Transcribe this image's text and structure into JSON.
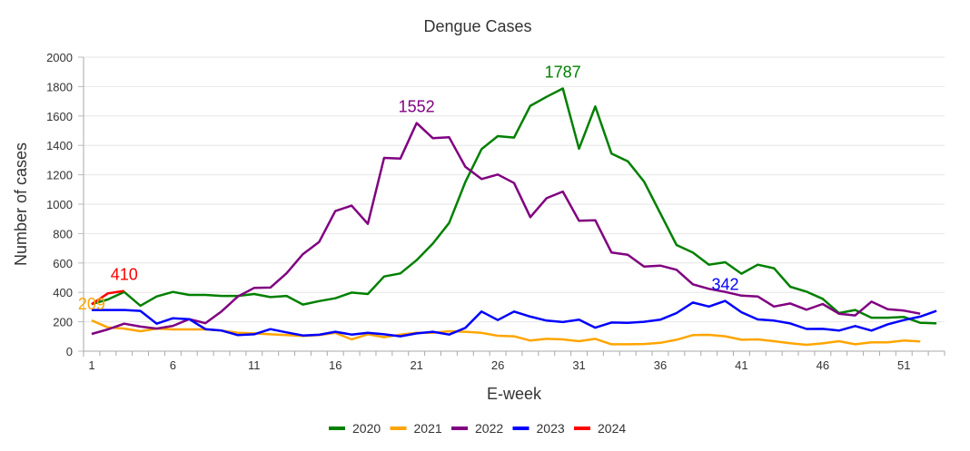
{
  "chart_data": {
    "type": "line",
    "title": "Dengue Cases",
    "xlabel": "E-week",
    "ylabel": "Number of cases",
    "ylim": [
      0,
      2000
    ],
    "yticks": [
      0,
      200,
      400,
      600,
      800,
      1000,
      1200,
      1400,
      1600,
      1800,
      2000
    ],
    "x": [
      1,
      2,
      3,
      4,
      5,
      6,
      7,
      8,
      9,
      10,
      11,
      12,
      13,
      14,
      15,
      16,
      17,
      18,
      19,
      20,
      21,
      22,
      23,
      24,
      25,
      26,
      27,
      28,
      29,
      30,
      31,
      32,
      33,
      34,
      35,
      36,
      37,
      38,
      39,
      40,
      41,
      42,
      43,
      44,
      45,
      46,
      47,
      48,
      49,
      50,
      51,
      52,
      53
    ],
    "xtick_labels": [
      "1",
      "6",
      "11",
      "16",
      "21",
      "26",
      "31",
      "36",
      "41",
      "46",
      "51"
    ],
    "xtick_weeks": [
      1,
      6,
      11,
      16,
      21,
      26,
      31,
      36,
      41,
      46,
      51
    ],
    "grid": true,
    "legend_position": "bottom",
    "series": [
      {
        "name": "2020",
        "color": "#008000",
        "values": [
          320,
          352,
          403,
          309,
          372,
          403,
          383,
          383,
          376,
          376,
          389,
          368,
          376,
          317,
          341,
          360,
          399,
          389,
          508,
          529,
          619,
          732,
          872,
          1150,
          1375,
          1463,
          1453,
          1669,
          1730,
          1787,
          1377,
          1665,
          1344,
          1292,
          1154,
          938,
          722,
          671,
          588,
          605,
          527,
          588,
          564,
          438,
          405,
          356,
          259,
          280,
          228,
          228,
          233,
          193,
          189
        ],
        "annotation": {
          "week": 30,
          "text": "1787"
        }
      },
      {
        "name": "2021",
        "color": "#FFA500",
        "values": [
          209,
          162,
          154,
          136,
          154,
          148,
          148,
          148,
          140,
          125,
          121,
          115,
          110,
          104,
          109,
          125,
          80,
          115,
          95,
          113,
          125,
          125,
          136,
          132,
          125,
          105,
          101,
          72,
          84,
          80,
          68,
          84,
          47,
          47,
          49,
          57,
          78,
          109,
          111,
          101,
          78,
          80,
          68,
          54,
          43,
          53,
          68,
          47,
          60,
          60,
          72,
          66
        ],
        "annotation": {
          "week": 1,
          "text": "209"
        }
      },
      {
        "name": "2022",
        "color": "#800080",
        "values": [
          117,
          148,
          187,
          167,
          154,
          172,
          218,
          191,
          271,
          372,
          430,
          433,
          530,
          660,
          743,
          953,
          990,
          866,
          1315,
          1310,
          1552,
          1449,
          1455,
          1255,
          1171,
          1202,
          1144,
          912,
          1041,
          1086,
          887,
          891,
          671,
          656,
          576,
          582,
          554,
          455,
          424,
          403,
          378,
          372,
          304,
          325,
          282,
          321,
          255,
          243,
          337,
          286,
          276,
          255
        ],
        "annotation": {
          "week": 21,
          "text": "1552"
        }
      },
      {
        "name": "2023",
        "color": "#0000FF",
        "values": [
          280,
          280,
          280,
          274,
          187,
          224,
          218,
          150,
          140,
          109,
          115,
          150,
          128,
          107,
          112,
          132,
          113,
          125,
          115,
          101,
          121,
          132,
          113,
          158,
          270,
          212,
          270,
          235,
          208,
          198,
          214,
          160,
          195,
          193,
          200,
          214,
          259,
          331,
          304,
          342,
          265,
          216,
          208,
          189,
          151,
          152,
          140,
          171,
          140,
          183,
          212,
          235,
          274
        ],
        "annotation": {
          "week": 40,
          "text": "342"
        }
      },
      {
        "name": "2024",
        "color": "#FF0000",
        "values": [
          320,
          393,
          410
        ],
        "annotation": {
          "week": 3,
          "text": "410"
        }
      }
    ]
  }
}
